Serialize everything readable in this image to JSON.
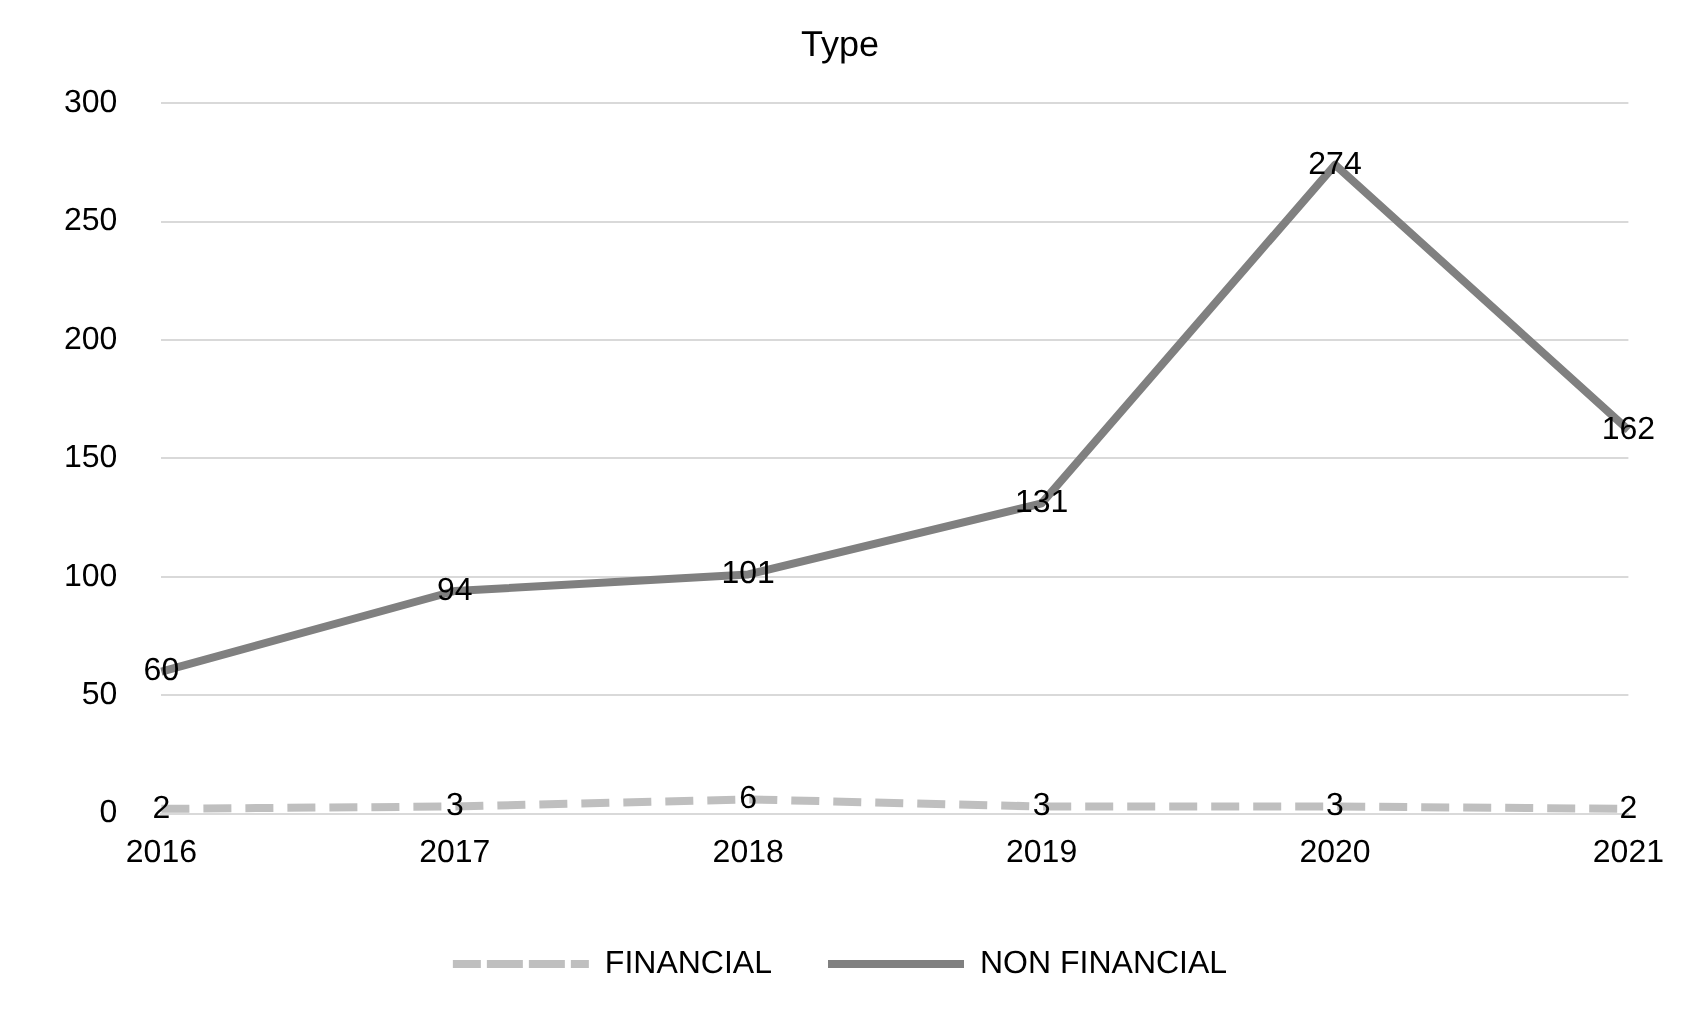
{
  "chart_data": {
    "type": "line",
    "title": "Type",
    "categories": [
      "2016",
      "2017",
      "2018",
      "2019",
      "2020",
      "2021"
    ],
    "series": [
      {
        "name": "FINANCIAL",
        "color": "#bfbfbf",
        "line_style": "dashed",
        "values": [
          2,
          3,
          6,
          3,
          3,
          2
        ]
      },
      {
        "name": "NON FINANCIAL",
        "color": "#808080",
        "line_style": "solid",
        "values": [
          60,
          94,
          101,
          131,
          274,
          162
        ]
      }
    ],
    "ylim": [
      0,
      300
    ],
    "yticks": [
      0,
      50,
      100,
      150,
      200,
      250,
      300
    ],
    "grid": "y",
    "legend": "bottom",
    "marker": "none",
    "data_labels": true
  }
}
